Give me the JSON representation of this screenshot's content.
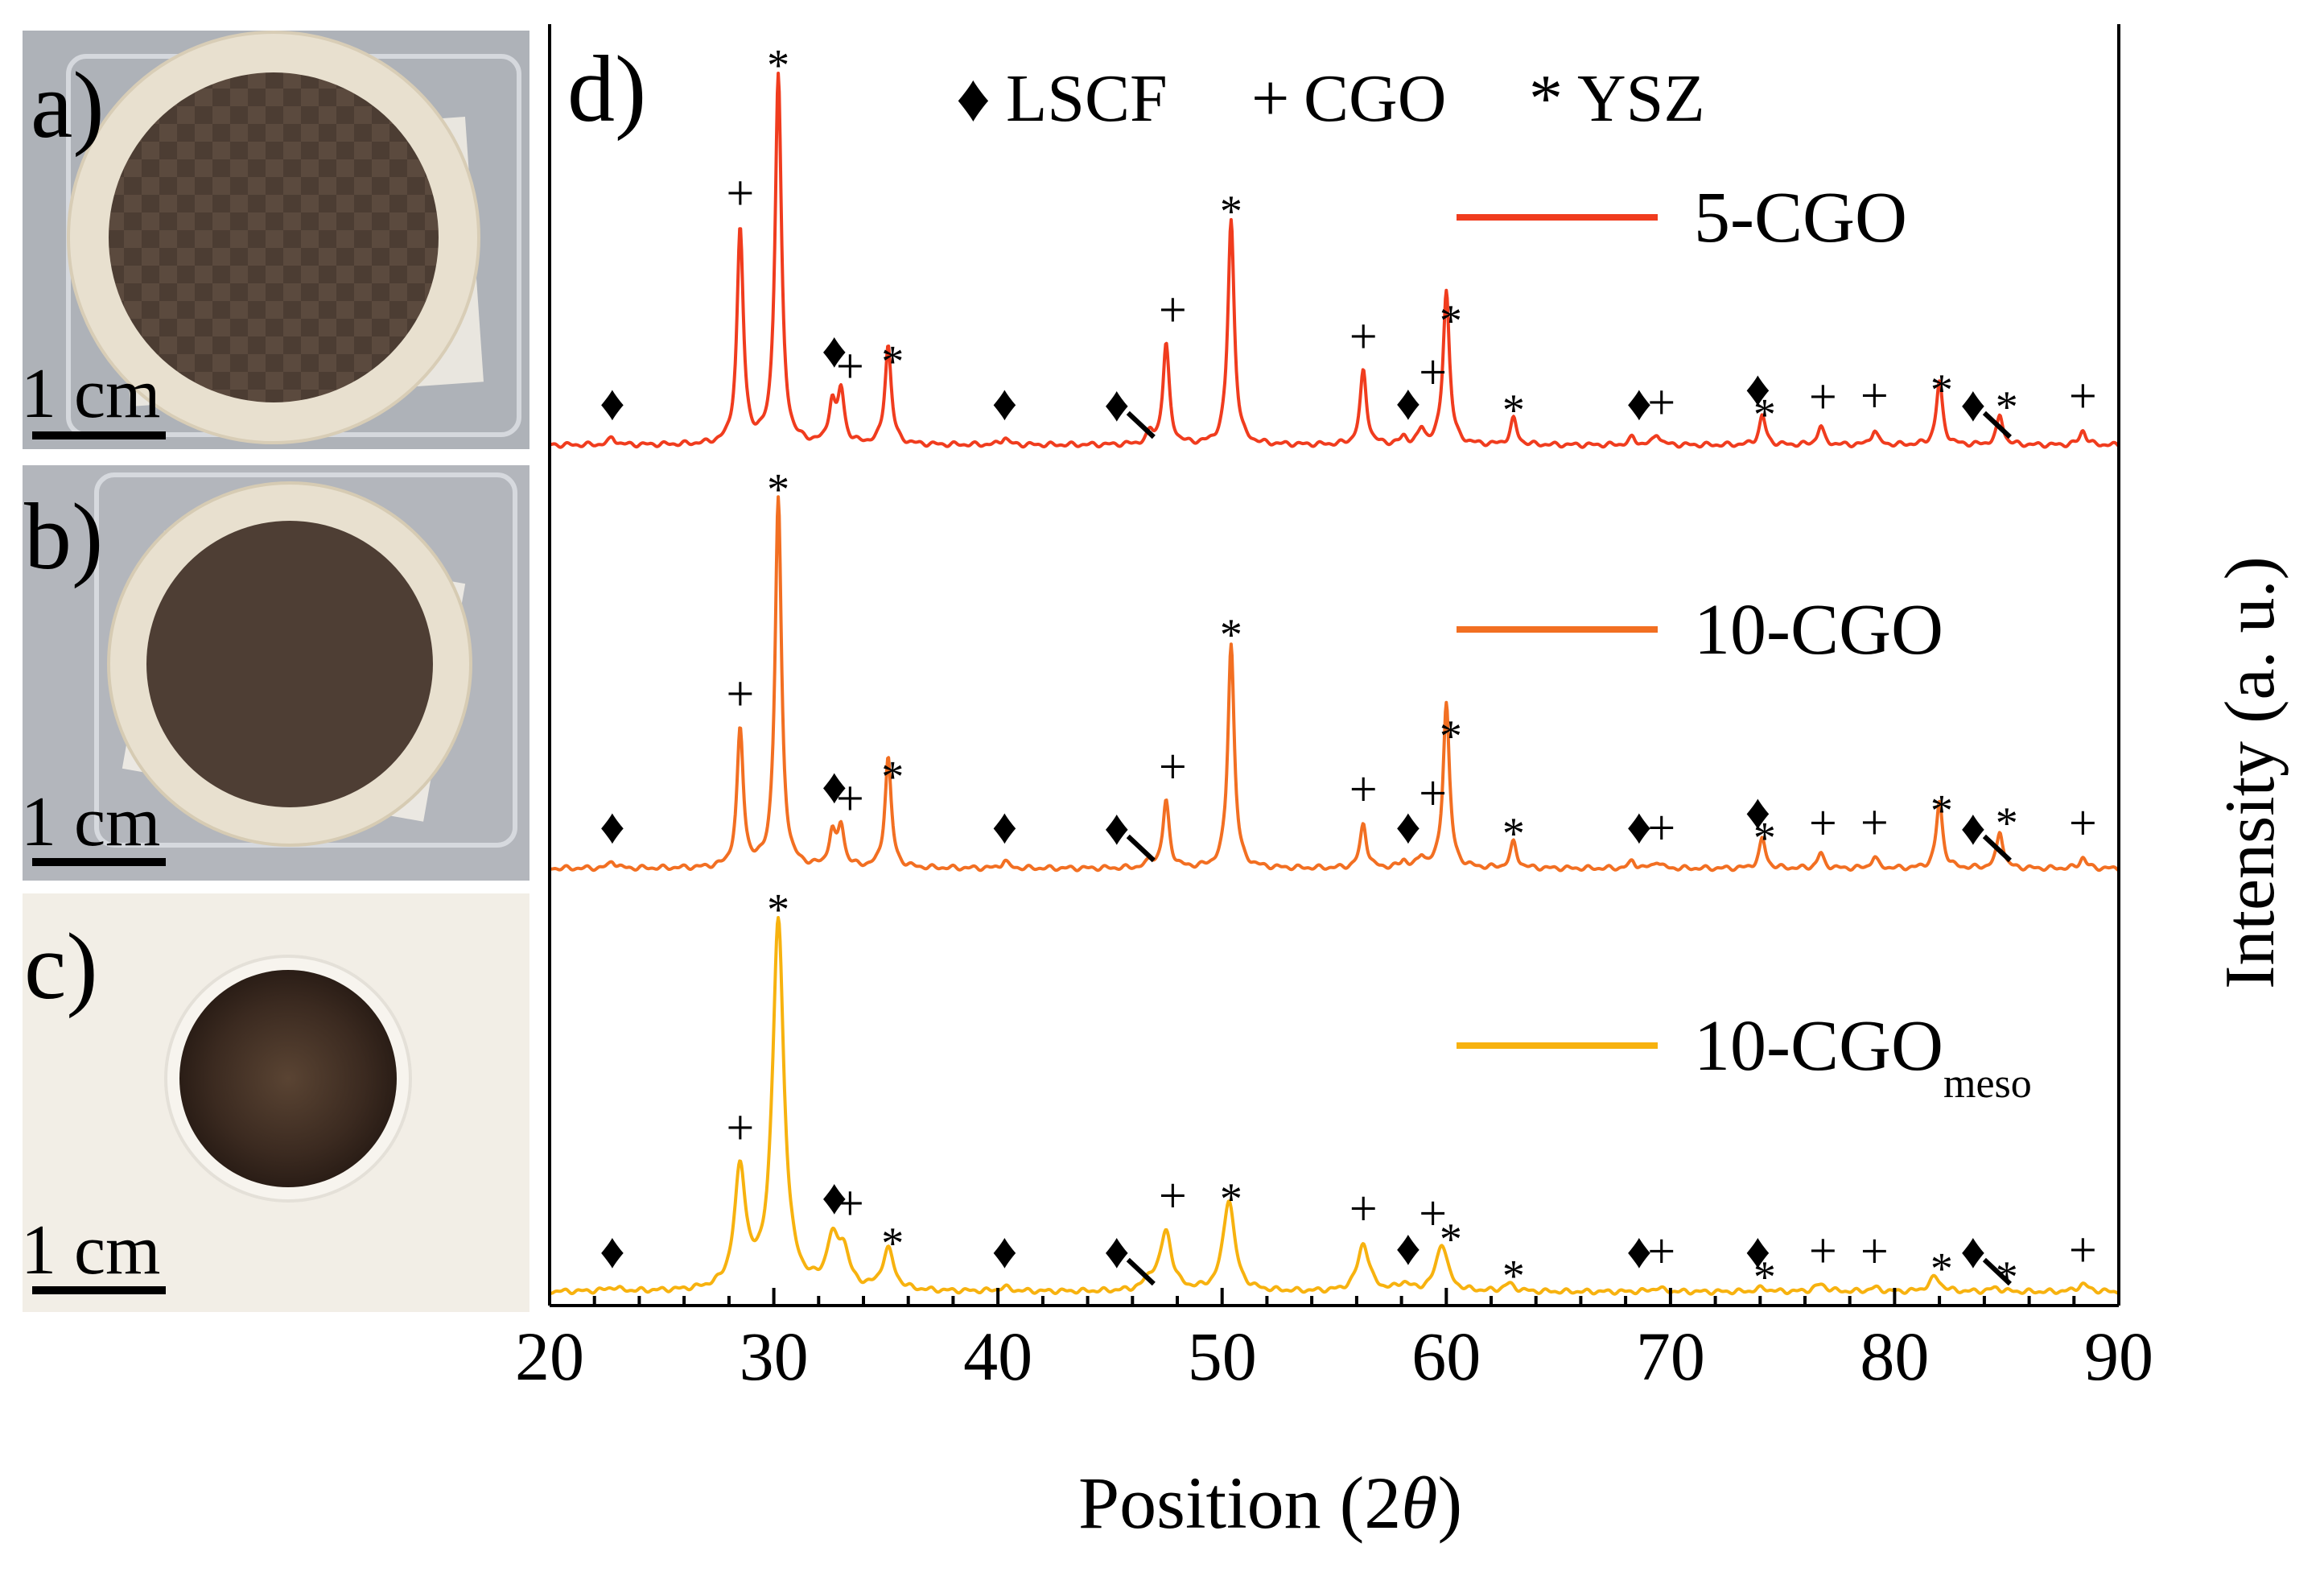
{
  "photos": [
    {
      "label": "a)",
      "scale_label": "1 cm"
    },
    {
      "label": "b)",
      "scale_label": "1 cm"
    },
    {
      "label": "c)",
      "scale_label": "1 cm"
    }
  ],
  "colors": {
    "5-CGO": "#f03c1e",
    "10-CGO": "#f26f22",
    "10-CGOmeso": "#f7b20f",
    "axis": "#000000",
    "tray_bg": "#aeb2b8",
    "ceramic": "#e8e0cf",
    "electrode": "#4c3d33",
    "photo_c_bg": "#f2eee6",
    "photo_c_electrode": "#3b2a20"
  },
  "chart_data": {
    "type": "line",
    "panel_label": "d)",
    "xlabel_prefix": "Position (2",
    "xlabel_symbol": "θ",
    "xlabel_suffix": ")",
    "ylabel": "Intensity (a. u.)",
    "xlim": [
      20,
      90
    ],
    "xticks": [
      "20",
      "30",
      "40",
      "50",
      "60",
      "70",
      "80",
      "90"
    ],
    "phase_legend": [
      {
        "marker": "♦",
        "name": "LSCF"
      },
      {
        "marker": "+",
        "name": "CGO"
      },
      {
        "marker": "*",
        "name": "YSZ"
      }
    ],
    "series": [
      {
        "name": "5-CGO",
        "label_main": "5-CGO",
        "label_sub": "",
        "color_key": "5-CGO",
        "width_factor": 1.0,
        "peaks": [
          {
            "x": 22.8,
            "h": 0.02
          },
          {
            "x": 28.5,
            "h": 0.58
          },
          {
            "x": 30.2,
            "h": 1.0
          },
          {
            "x": 32.6,
            "h": 0.11
          },
          {
            "x": 33.0,
            "h": 0.14
          },
          {
            "x": 35.1,
            "h": 0.27
          },
          {
            "x": 40.3,
            "h": 0.02
          },
          {
            "x": 46.8,
            "h": 0.03
          },
          {
            "x": 47.5,
            "h": 0.27
          },
          {
            "x": 50.4,
            "h": 0.61
          },
          {
            "x": 56.3,
            "h": 0.2
          },
          {
            "x": 58.1,
            "h": 0.02
          },
          {
            "x": 58.9,
            "h": 0.04
          },
          {
            "x": 60.0,
            "h": 0.42
          },
          {
            "x": 63.0,
            "h": 0.07
          },
          {
            "x": 68.3,
            "h": 0.02
          },
          {
            "x": 69.4,
            "h": 0.03
          },
          {
            "x": 74.1,
            "h": 0.08
          },
          {
            "x": 76.7,
            "h": 0.05
          },
          {
            "x": 79.1,
            "h": 0.04
          },
          {
            "x": 82.0,
            "h": 0.17
          },
          {
            "x": 84.7,
            "h": 0.08
          },
          {
            "x": 88.4,
            "h": 0.04
          }
        ]
      },
      {
        "name": "10-CGO",
        "label_main": "10-CGO",
        "label_sub": "",
        "color_key": "10-CGO",
        "width_factor": 1.0,
        "peaks": [
          {
            "x": 22.8,
            "h": 0.02
          },
          {
            "x": 28.5,
            "h": 0.37
          },
          {
            "x": 30.2,
            "h": 1.0
          },
          {
            "x": 32.6,
            "h": 0.09
          },
          {
            "x": 33.0,
            "h": 0.11
          },
          {
            "x": 35.1,
            "h": 0.3
          },
          {
            "x": 40.3,
            "h": 0.02
          },
          {
            "x": 46.8,
            "h": 0.02
          },
          {
            "x": 47.5,
            "h": 0.18
          },
          {
            "x": 50.4,
            "h": 0.61
          },
          {
            "x": 56.3,
            "h": 0.12
          },
          {
            "x": 58.1,
            "h": 0.02
          },
          {
            "x": 58.9,
            "h": 0.03
          },
          {
            "x": 60.0,
            "h": 0.45
          },
          {
            "x": 63.0,
            "h": 0.07
          },
          {
            "x": 68.3,
            "h": 0.02
          },
          {
            "x": 69.4,
            "h": 0.02
          },
          {
            "x": 74.1,
            "h": 0.08
          },
          {
            "x": 76.7,
            "h": 0.04
          },
          {
            "x": 79.1,
            "h": 0.03
          },
          {
            "x": 82.0,
            "h": 0.18
          },
          {
            "x": 84.7,
            "h": 0.1
          },
          {
            "x": 88.4,
            "h": 0.03
          }
        ]
      },
      {
        "name": "10-CGOmeso",
        "label_main": "10-CGO",
        "label_sub": "meso",
        "color_key": "10-CGOmeso",
        "width_factor": 1.8,
        "peaks": [
          {
            "x": 22.8,
            "h": 0.01
          },
          {
            "x": 28.5,
            "h": 0.32
          },
          {
            "x": 30.2,
            "h": 1.0
          },
          {
            "x": 32.6,
            "h": 0.12
          },
          {
            "x": 33.1,
            "h": 0.1
          },
          {
            "x": 35.1,
            "h": 0.11
          },
          {
            "x": 40.3,
            "h": 0.01
          },
          {
            "x": 46.8,
            "h": 0.03
          },
          {
            "x": 47.5,
            "h": 0.16
          },
          {
            "x": 50.3,
            "h": 0.25
          },
          {
            "x": 56.3,
            "h": 0.13
          },
          {
            "x": 58.1,
            "h": 0.02
          },
          {
            "x": 59.8,
            "h": 0.13
          },
          {
            "x": 62.8,
            "h": 0.02
          },
          {
            "x": 69.4,
            "h": 0.01
          },
          {
            "x": 74.1,
            "h": 0.01
          },
          {
            "x": 76.7,
            "h": 0.02
          },
          {
            "x": 79.1,
            "h": 0.01
          },
          {
            "x": 81.8,
            "h": 0.04
          },
          {
            "x": 84.5,
            "h": 0.01
          },
          {
            "x": 88.4,
            "h": 0.02
          }
        ]
      }
    ],
    "annotations": [
      {
        "series": 0,
        "items": [
          {
            "x": 22.8,
            "s": "♦"
          },
          {
            "x": 28.5,
            "s": "+"
          },
          {
            "x": 30.2,
            "s": "*"
          },
          {
            "x": 32.7,
            "s": "♦"
          },
          {
            "x": 33.4,
            "s": "+"
          },
          {
            "x": 35.3,
            "s": "*"
          },
          {
            "x": 40.3,
            "s": "♦"
          },
          {
            "x": 45.3,
            "s": "♦",
            "leader": true
          },
          {
            "x": 47.8,
            "s": "+"
          },
          {
            "x": 50.4,
            "s": "*"
          },
          {
            "x": 56.3,
            "s": "+"
          },
          {
            "x": 58.3,
            "s": "♦"
          },
          {
            "x": 59.4,
            "s": "+"
          },
          {
            "x": 60.2,
            "s": "*"
          },
          {
            "x": 63.0,
            "s": "*"
          },
          {
            "x": 68.6,
            "s": "♦"
          },
          {
            "x": 69.6,
            "s": "+"
          },
          {
            "x": 73.9,
            "s": "♦"
          },
          {
            "x": 74.2,
            "s": "*"
          },
          {
            "x": 76.8,
            "s": "+"
          },
          {
            "x": 79.1,
            "s": "+"
          },
          {
            "x": 82.1,
            "s": "*"
          },
          {
            "x": 83.5,
            "s": "♦",
            "leader": true
          },
          {
            "x": 85.0,
            "s": "*"
          },
          {
            "x": 88.4,
            "s": "+"
          }
        ]
      },
      {
        "series": 1,
        "items": [
          {
            "x": 22.8,
            "s": "♦"
          },
          {
            "x": 28.5,
            "s": "+"
          },
          {
            "x": 30.2,
            "s": "*"
          },
          {
            "x": 32.7,
            "s": "♦"
          },
          {
            "x": 33.4,
            "s": "+"
          },
          {
            "x": 35.3,
            "s": "*"
          },
          {
            "x": 40.3,
            "s": "♦"
          },
          {
            "x": 45.3,
            "s": "♦",
            "leader": true
          },
          {
            "x": 47.8,
            "s": "+"
          },
          {
            "x": 50.4,
            "s": "*"
          },
          {
            "x": 56.3,
            "s": "+"
          },
          {
            "x": 58.3,
            "s": "♦"
          },
          {
            "x": 59.4,
            "s": "+"
          },
          {
            "x": 60.2,
            "s": "*"
          },
          {
            "x": 63.0,
            "s": "*"
          },
          {
            "x": 68.6,
            "s": "♦"
          },
          {
            "x": 69.6,
            "s": "+"
          },
          {
            "x": 73.9,
            "s": "♦"
          },
          {
            "x": 74.2,
            "s": "*"
          },
          {
            "x": 76.8,
            "s": "+"
          },
          {
            "x": 79.1,
            "s": "+"
          },
          {
            "x": 82.1,
            "s": "*"
          },
          {
            "x": 83.5,
            "s": "♦",
            "leader": true
          },
          {
            "x": 85.0,
            "s": "*"
          },
          {
            "x": 88.4,
            "s": "+"
          }
        ]
      },
      {
        "series": 2,
        "items": [
          {
            "x": 22.8,
            "s": "♦"
          },
          {
            "x": 28.5,
            "s": "+"
          },
          {
            "x": 30.2,
            "s": "*"
          },
          {
            "x": 32.7,
            "s": "♦"
          },
          {
            "x": 33.4,
            "s": "+"
          },
          {
            "x": 35.3,
            "s": "*"
          },
          {
            "x": 40.3,
            "s": "♦"
          },
          {
            "x": 45.3,
            "s": "♦",
            "leader": true
          },
          {
            "x": 47.8,
            "s": "+"
          },
          {
            "x": 50.4,
            "s": "*"
          },
          {
            "x": 56.3,
            "s": "+"
          },
          {
            "x": 58.3,
            "s": "♦"
          },
          {
            "x": 59.4,
            "s": "+"
          },
          {
            "x": 60.2,
            "s": "*"
          },
          {
            "x": 63.0,
            "s": "*"
          },
          {
            "x": 68.6,
            "s": "♦"
          },
          {
            "x": 69.6,
            "s": "+"
          },
          {
            "x": 73.9,
            "s": "♦"
          },
          {
            "x": 74.2,
            "s": "*"
          },
          {
            "x": 76.8,
            "s": "+"
          },
          {
            "x": 79.1,
            "s": "+"
          },
          {
            "x": 82.1,
            "s": "*"
          },
          {
            "x": 83.5,
            "s": "♦",
            "leader": true
          },
          {
            "x": 85.0,
            "s": "*"
          },
          {
            "x": 88.4,
            "s": "+"
          }
        ]
      }
    ]
  }
}
